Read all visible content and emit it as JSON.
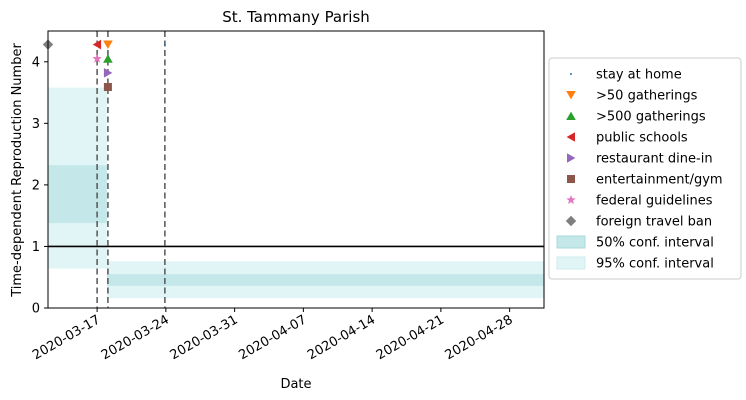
{
  "chart_data": {
    "type": "line",
    "title": "St. Tammany Parish",
    "xlabel": "Date",
    "ylabel": "Time-dependent Reproduction Number",
    "x_start": "2020-03-12",
    "x_end": "2020-05-02",
    "ylim": [
      0,
      4.5
    ],
    "yticks": [
      0,
      1,
      2,
      3,
      4
    ],
    "xticks": [
      {
        "label": "2020-03-17",
        "day": 5
      },
      {
        "label": "2020-03-24",
        "day": 12
      },
      {
        "label": "2020-03-31",
        "day": 19
      },
      {
        "label": "2020-04-07",
        "day": 26
      },
      {
        "label": "2020-04-14",
        "day": 33
      },
      {
        "label": "2020-04-21",
        "day": 40
      },
      {
        "label": "2020-04-28",
        "day": 47
      }
    ],
    "reference_line": 1,
    "intervals": [
      {
        "start_day": 0,
        "end_day": 6,
        "ci50": [
          1.38,
          2.32
        ],
        "ci95": [
          0.64,
          3.58
        ]
      },
      {
        "start_day": 6,
        "end_day": 51,
        "ci50": [
          0.36,
          0.55
        ],
        "ci95": [
          0.16,
          0.76
        ]
      }
    ],
    "interventions": [
      {
        "name": "stay at home",
        "day": 11.9,
        "marker": "circle",
        "color": "#1f77b4"
      },
      {
        "name": ">50 gatherings",
        "day": 6.1,
        "marker": "triangle-down",
        "color": "#ff7f0e"
      },
      {
        "name": ">500 gatherings",
        "day": 6.1,
        "marker": "triangle-up",
        "color": "#2ca02c"
      },
      {
        "name": "public schools",
        "day": 5.0,
        "marker": "triangle-left",
        "color": "#d62728"
      },
      {
        "name": "restaurant dine-in",
        "day": 6.1,
        "marker": "triangle-right",
        "color": "#9467bd"
      },
      {
        "name": "entertainment/gym",
        "day": 6.1,
        "marker": "square",
        "color": "#8c564b"
      },
      {
        "name": "federal guidelines",
        "day": 5.0,
        "marker": "star",
        "color": "#e377c2"
      },
      {
        "name": "foreign travel ban",
        "day": 0.0,
        "marker": "diamond",
        "color": "#7f7f7f"
      }
    ],
    "marker_y": [
      4.28,
      4.28,
      4.05,
      4.28,
      3.82,
      3.59,
      4.05,
      4.28
    ],
    "vlines_days": [
      5.0,
      6.1,
      11.9
    ],
    "legend": {
      "position": "center-right",
      "ci50_label": "50% conf. interval",
      "ci95_label": "95% conf. interval"
    },
    "colors": {
      "ci50": "#c4e8e9",
      "ci95": "#e2f5f6",
      "vline": "#555555",
      "refline": "#000000"
    }
  }
}
